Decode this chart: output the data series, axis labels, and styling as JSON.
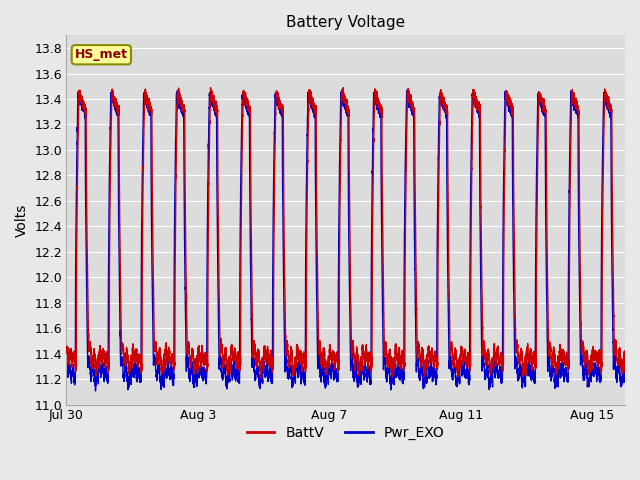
{
  "title": "Battery Voltage",
  "ylabel": "Volts",
  "ylim": [
    11.0,
    13.9
  ],
  "yticks": [
    11.0,
    11.2,
    11.4,
    11.6,
    11.8,
    12.0,
    12.2,
    12.4,
    12.6,
    12.8,
    13.0,
    13.2,
    13.4,
    13.6,
    13.8
  ],
  "xlim": [
    0,
    17
  ],
  "x_tick_labels": [
    "Jul 30",
    "Aug 3",
    "Aug 7",
    "Aug 11",
    "Aug 15"
  ],
  "x_tick_positions": [
    0,
    4,
    8,
    12,
    16
  ],
  "battv_color": "#cc0000",
  "pwr_exo_color": "#0000cc",
  "line_width": 1.0,
  "fig_bg_color": "#e8e8e8",
  "plot_bg_color": "#dcdcdc",
  "legend_label_battv": "BattV",
  "legend_label_pwr": "Pwr_EXO",
  "station_label": "HS_met",
  "station_box_color": "#ffff99",
  "station_border_color": "#8b8b00",
  "n_days": 17,
  "batt_max": 13.45,
  "batt_min": 11.33,
  "pwr_max": 13.43,
  "pwr_min": 11.22,
  "grid_color": "#ffffff",
  "title_fontsize": 11,
  "tick_fontsize": 9,
  "ylabel_fontsize": 10
}
